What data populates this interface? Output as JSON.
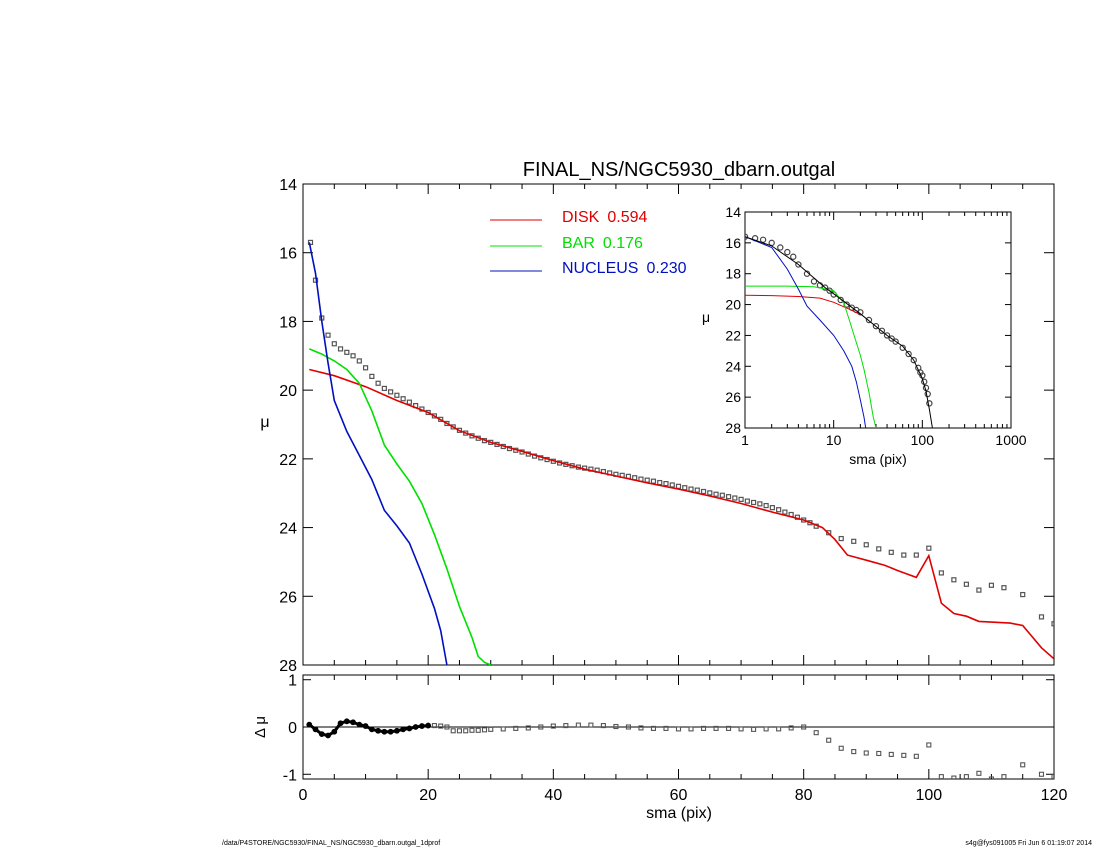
{
  "figure": {
    "title": "FINAL_NS/NGC5930_dbarn.outgal",
    "footer_left": "/data/P4STORE/NGC5930/FINAL_NS/NGC5930_dbarn.outgal_1dprof",
    "footer_right": "s4g@fys091005  Fri Jun  6 01:19:07 2014"
  },
  "chart_data": [
    {
      "id": "main",
      "type": "line",
      "title": "FINAL_NS/NGC5930_dbarn.outgal",
      "ylabel": "μ",
      "xlim": [
        0,
        120
      ],
      "ylim": [
        28,
        14
      ],
      "y_inverted": true,
      "yticks": [
        14,
        16,
        18,
        20,
        22,
        24,
        26,
        28
      ],
      "legend": {
        "placement": "top-center",
        "entries": [
          {
            "name": "DISK",
            "value": "0.594",
            "color": "#e00000"
          },
          {
            "name": "BAR",
            "value": "0.176",
            "color": "#00e000"
          },
          {
            "name": "NUCLEUS",
            "value": "0.230",
            "color": "#0010c0"
          }
        ]
      },
      "series": [
        {
          "name": "data",
          "style": "open-squares",
          "color": "#555555",
          "x": [
            1.2,
            2,
            3,
            4,
            5,
            6,
            7,
            8,
            9,
            10,
            11,
            12,
            13,
            14,
            15,
            16,
            17,
            18,
            19,
            20,
            21,
            22,
            23,
            24,
            25,
            26,
            27,
            28,
            29,
            30,
            31,
            32,
            33,
            34,
            35,
            36,
            37,
            38,
            39,
            40,
            41,
            42,
            43,
            44,
            45,
            46,
            47,
            48,
            49,
            50,
            51,
            52,
            53,
            54,
            55,
            56,
            57,
            58,
            59,
            60,
            61,
            62,
            63,
            64,
            65,
            66,
            67,
            68,
            69,
            70,
            71,
            72,
            73,
            74,
            75,
            76,
            77,
            78,
            79,
            80,
            81,
            82,
            84,
            86,
            88,
            90,
            92,
            94,
            96,
            98,
            100,
            102,
            104,
            106,
            108,
            110,
            112,
            115,
            118,
            120
          ],
          "y": [
            15.7,
            16.8,
            17.9,
            18.4,
            18.65,
            18.8,
            18.9,
            19.0,
            19.15,
            19.35,
            19.6,
            19.8,
            19.95,
            20.05,
            20.15,
            20.25,
            20.35,
            20.45,
            20.55,
            20.65,
            20.75,
            20.85,
            20.97,
            21.07,
            21.17,
            21.25,
            21.33,
            21.4,
            21.47,
            21.52,
            21.58,
            21.64,
            21.7,
            21.75,
            21.8,
            21.86,
            21.92,
            21.97,
            22.02,
            22.07,
            22.12,
            22.16,
            22.2,
            22.24,
            22.27,
            22.3,
            22.33,
            22.37,
            22.41,
            22.45,
            22.48,
            22.51,
            22.55,
            22.59,
            22.62,
            22.65,
            22.69,
            22.72,
            22.76,
            22.8,
            22.84,
            22.88,
            22.91,
            22.95,
            22.99,
            23.03,
            23.06,
            23.1,
            23.14,
            23.18,
            23.23,
            23.27,
            23.31,
            23.36,
            23.42,
            23.48,
            23.55,
            23.62,
            23.7,
            23.78,
            23.86,
            23.96,
            24.15,
            24.32,
            24.4,
            24.5,
            24.62,
            24.72,
            24.8,
            24.8,
            24.6,
            25.32,
            25.52,
            25.65,
            25.82,
            25.68,
            25.75,
            25.95,
            26.6,
            26.8
          ]
        },
        {
          "name": "DISK",
          "color": "#e00000",
          "x": [
            1,
            5,
            10,
            15,
            20,
            25,
            30,
            35,
            40,
            45,
            50,
            55,
            60,
            65,
            70,
            75,
            80,
            83,
            85,
            87,
            90,
            93,
            95,
            98,
            100,
            102,
            104,
            106,
            108,
            110,
            113,
            115,
            118,
            120
          ],
          "y": [
            19.4,
            19.58,
            19.9,
            20.3,
            20.65,
            21.18,
            21.52,
            21.78,
            22.05,
            22.3,
            22.5,
            22.7,
            22.88,
            23.08,
            23.3,
            23.55,
            23.78,
            24.0,
            24.35,
            24.8,
            24.95,
            25.1,
            25.25,
            25.45,
            24.82,
            26.2,
            26.5,
            26.58,
            26.73,
            26.75,
            26.78,
            26.85,
            27.5,
            27.82
          ]
        },
        {
          "name": "BAR",
          "color": "#00e000",
          "x": [
            1,
            3,
            5,
            7,
            9,
            11,
            13,
            15,
            17,
            19,
            21,
            23,
            25,
            27,
            28,
            29,
            30
          ],
          "y": [
            18.8,
            18.95,
            19.15,
            19.4,
            19.8,
            20.6,
            21.6,
            22.15,
            22.65,
            23.3,
            24.2,
            25.2,
            26.3,
            27.2,
            27.75,
            27.92,
            28.0
          ]
        },
        {
          "name": "NUCLEUS",
          "color": "#0010c0",
          "x": [
            1,
            2,
            3,
            4,
            5,
            7,
            9,
            11,
            13,
            15,
            17,
            19,
            21,
            22,
            23
          ],
          "y": [
            15.7,
            16.6,
            18.0,
            19.2,
            20.3,
            21.2,
            21.9,
            22.6,
            23.5,
            23.95,
            24.45,
            25.35,
            26.35,
            27.0,
            28.0
          ]
        }
      ]
    },
    {
      "id": "inset",
      "type": "line",
      "xlabel": "sma (pix)",
      "ylabel": "μ",
      "x_log": true,
      "xlim": [
        1,
        1000
      ],
      "ylim": [
        28,
        14
      ],
      "y_inverted": true,
      "xticks": [
        "1",
        "10",
        "100",
        "1000"
      ],
      "yticks": [
        14,
        16,
        18,
        20,
        22,
        24,
        26,
        28
      ],
      "series": [
        {
          "name": "data",
          "style": "open-circles",
          "color": "#444444",
          "x": [
            1,
            1.3,
            1.6,
            2,
            2.5,
            3,
            3.5,
            4,
            5,
            6,
            7,
            8,
            9,
            10,
            12,
            14,
            16,
            18,
            20,
            25,
            30,
            35,
            40,
            45,
            50,
            60,
            70,
            80,
            90,
            95,
            100,
            105,
            110,
            115,
            120
          ],
          "y": [
            15.6,
            15.7,
            15.8,
            16.0,
            16.3,
            16.6,
            16.9,
            17.4,
            18.0,
            18.5,
            18.75,
            18.9,
            19.1,
            19.35,
            19.7,
            20.0,
            20.2,
            20.35,
            20.5,
            21.0,
            21.4,
            21.7,
            22.0,
            22.2,
            22.4,
            22.8,
            23.2,
            23.6,
            24.1,
            24.4,
            24.6,
            25.0,
            25.4,
            25.8,
            26.4
          ]
        },
        {
          "name": "DISK",
          "color": "#e00000",
          "x": [
            1,
            2,
            4,
            7,
            10,
            15,
            20
          ],
          "y": [
            19.4,
            19.42,
            19.48,
            19.58,
            19.85,
            20.3,
            20.65
          ]
        },
        {
          "name": "BAR",
          "color": "#00e000",
          "x": [
            1,
            3,
            6,
            10,
            13,
            15,
            17,
            20,
            22,
            25,
            28,
            30
          ],
          "y": [
            18.8,
            18.8,
            18.85,
            19.1,
            19.9,
            21.0,
            22.0,
            23.3,
            24.2,
            25.7,
            27.3,
            28.0
          ]
        },
        {
          "name": "NUCLEUS",
          "color": "#0010c0",
          "x": [
            1,
            2,
            3,
            4,
            5,
            7,
            10,
            13,
            16,
            18,
            20,
            22,
            23
          ],
          "y": [
            15.6,
            16.3,
            17.7,
            19.0,
            20.1,
            21.0,
            22.0,
            23.0,
            24.0,
            25.0,
            26.2,
            27.3,
            28.0
          ]
        },
        {
          "name": "model",
          "color": "#000000",
          "x": [
            1,
            2,
            4,
            8,
            10,
            20,
            40,
            60,
            80,
            100,
            110,
            120,
            130
          ],
          "y": [
            15.6,
            16.2,
            17.4,
            18.9,
            19.3,
            20.6,
            22.0,
            22.7,
            23.6,
            24.8,
            25.6,
            26.8,
            28.0
          ]
        }
      ]
    },
    {
      "id": "residual",
      "type": "scatter",
      "xlabel": "sma (pix)",
      "ylabel": "Δ μ",
      "xlim": [
        0,
        120
      ],
      "ylim": [
        -1.1,
        1.1
      ],
      "xticks": [
        0,
        20,
        40,
        60,
        80,
        100,
        120
      ],
      "yticks": [
        1,
        0,
        -1
      ],
      "zero_line": true,
      "series": [
        {
          "name": "residuals",
          "color": "#555555",
          "x": [
            1,
            2,
            3,
            4,
            5,
            6,
            7,
            8,
            9,
            10,
            11,
            12,
            13,
            14,
            15,
            16,
            17,
            18,
            19,
            20,
            21,
            22,
            23,
            24,
            25,
            26,
            27,
            28,
            29,
            30,
            32,
            34,
            36,
            38,
            40,
            42,
            44,
            46,
            48,
            50,
            52,
            54,
            56,
            58,
            60,
            62,
            64,
            66,
            68,
            70,
            72,
            74,
            76,
            78,
            80,
            82,
            84,
            86,
            88,
            90,
            92,
            94,
            96,
            98,
            100,
            102,
            104,
            106,
            108,
            110,
            112,
            115,
            118,
            120
          ],
          "y": [
            0.05,
            -0.05,
            -0.15,
            -0.18,
            -0.1,
            0.08,
            0.12,
            0.1,
            0.05,
            0.02,
            -0.05,
            -0.08,
            -0.1,
            -0.1,
            -0.08,
            -0.05,
            -0.03,
            0.0,
            0.02,
            0.03,
            0.03,
            0.02,
            0.0,
            -0.08,
            -0.08,
            -0.08,
            -0.07,
            -0.07,
            -0.06,
            -0.05,
            -0.04,
            -0.03,
            -0.02,
            0.0,
            0.02,
            0.03,
            0.04,
            0.04,
            0.03,
            0.01,
            0.0,
            -0.02,
            -0.03,
            -0.03,
            -0.04,
            -0.04,
            -0.03,
            -0.03,
            -0.03,
            -0.04,
            -0.05,
            -0.04,
            -0.04,
            -0.02,
            0.0,
            -0.12,
            -0.28,
            -0.45,
            -0.52,
            -0.55,
            -0.56,
            -0.58,
            -0.6,
            -0.62,
            -0.38,
            -1.05,
            -1.08,
            -1.05,
            -0.98,
            -1.1,
            -1.05,
            -0.8,
            -1.0,
            -1.05
          ]
        }
      ]
    }
  ]
}
